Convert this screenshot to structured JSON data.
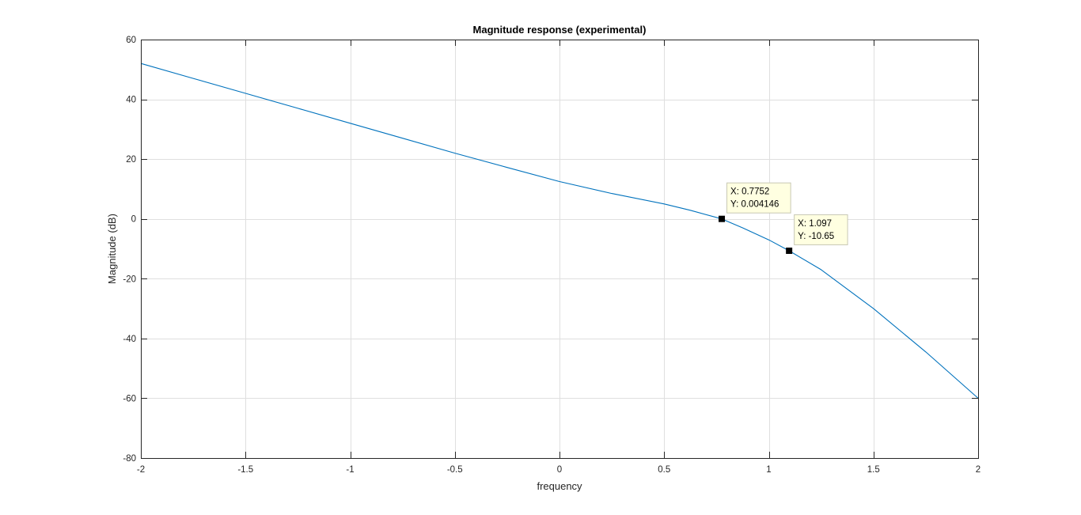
{
  "chart_data": {
    "type": "line",
    "title": "Magnitude response (experimental)",
    "xlabel": "frequency",
    "ylabel": "Magnitude (dB)",
    "xlim": [
      -2,
      2
    ],
    "ylim": [
      -80,
      60
    ],
    "x_ticks": [
      -2,
      -1.5,
      -1,
      -0.5,
      0,
      0.5,
      1,
      1.5,
      2
    ],
    "x_tick_labels": [
      "-2",
      "-1.5",
      "-1",
      "-0.5",
      "0",
      "0.5",
      "1",
      "1.5",
      "2"
    ],
    "y_ticks": [
      -80,
      -60,
      -40,
      -20,
      0,
      20,
      40,
      60
    ],
    "y_tick_labels": [
      "-80",
      "-60",
      "-40",
      "-20",
      "0",
      "20",
      "40",
      "60"
    ],
    "grid": true,
    "series": [
      {
        "color": "#0072bd",
        "x": [
          -2,
          -1.75,
          -1.5,
          -1.25,
          -1,
          -0.75,
          -0.5,
          -0.25,
          0,
          0.25,
          0.5,
          0.625,
          0.7752,
          0.875,
          1,
          1.097,
          1.25,
          1.5,
          1.75,
          2
        ],
        "y": [
          52,
          47,
          42,
          37,
          32,
          27,
          22,
          17.2,
          12.5,
          8.5,
          5,
          2.9,
          0.004146,
          -3,
          -7,
          -10.65,
          -17,
          -30,
          -44.5,
          -60
        ]
      }
    ],
    "datatips": [
      {
        "x": 0.7752,
        "y": 0.004146,
        "line1": "X: 0.7752",
        "line2": "Y: 0.004146"
      },
      {
        "x": 1.097,
        "y": -10.65,
        "line1": "X: 1.097",
        "line2": "Y: -10.65"
      }
    ],
    "colors": {
      "line": "#0072bd",
      "grid": "#dfdfdf",
      "axes": "#262626",
      "tip_bg": "#ffffe1",
      "tip_border": "#c8c8b4"
    }
  }
}
